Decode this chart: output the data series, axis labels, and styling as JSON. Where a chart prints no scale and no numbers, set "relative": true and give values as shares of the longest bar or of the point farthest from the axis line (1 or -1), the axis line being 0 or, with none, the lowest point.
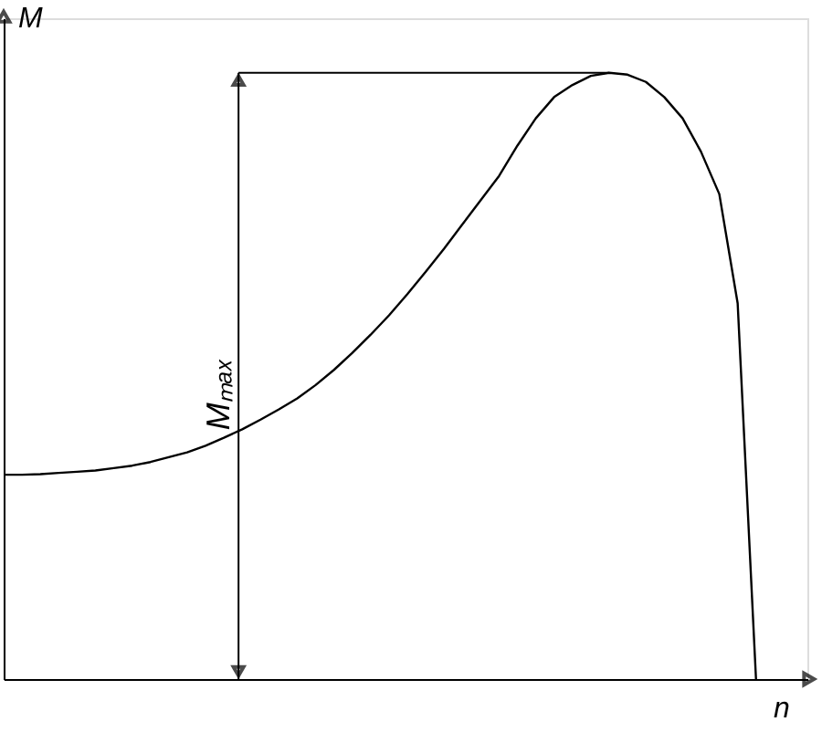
{
  "chart_data": {
    "type": "line",
    "relative": true,
    "xlabel": "n",
    "ylabel": "M",
    "categories": [
      null,
      null,
      null,
      null,
      null,
      null,
      null,
      null,
      null,
      null,
      null,
      null,
      null,
      null,
      null,
      null,
      null,
      null,
      null,
      null,
      null,
      null,
      null,
      null,
      null,
      null,
      null,
      null,
      null,
      null,
      null,
      null,
      null,
      null,
      null,
      null,
      null,
      null,
      null,
      null,
      null,
      null
    ],
    "series": [
      {
        "color": "#000000",
        "values": [
          0.337,
          0.337,
          0.338,
          0.34,
          0.342,
          0.344,
          0.348,
          0.352,
          0.358,
          0.366,
          0.374,
          0.385,
          0.398,
          0.412,
          0.428,
          0.445,
          0.463,
          0.485,
          0.51,
          0.538,
          0.568,
          0.6,
          0.635,
          0.672,
          0.71,
          0.75,
          0.79,
          0.83,
          0.88,
          0.925,
          0.96,
          0.98,
          0.995,
          1,
          0.997,
          0.985,
          0.96,
          0.925,
          0.87,
          0.8,
          0.62,
          0
        ]
      }
    ],
    "annotations": [
      "Mₘₐₓ"
    ],
    "grid": false,
    "marker": "none",
    "line_style": "solid"
  }
}
